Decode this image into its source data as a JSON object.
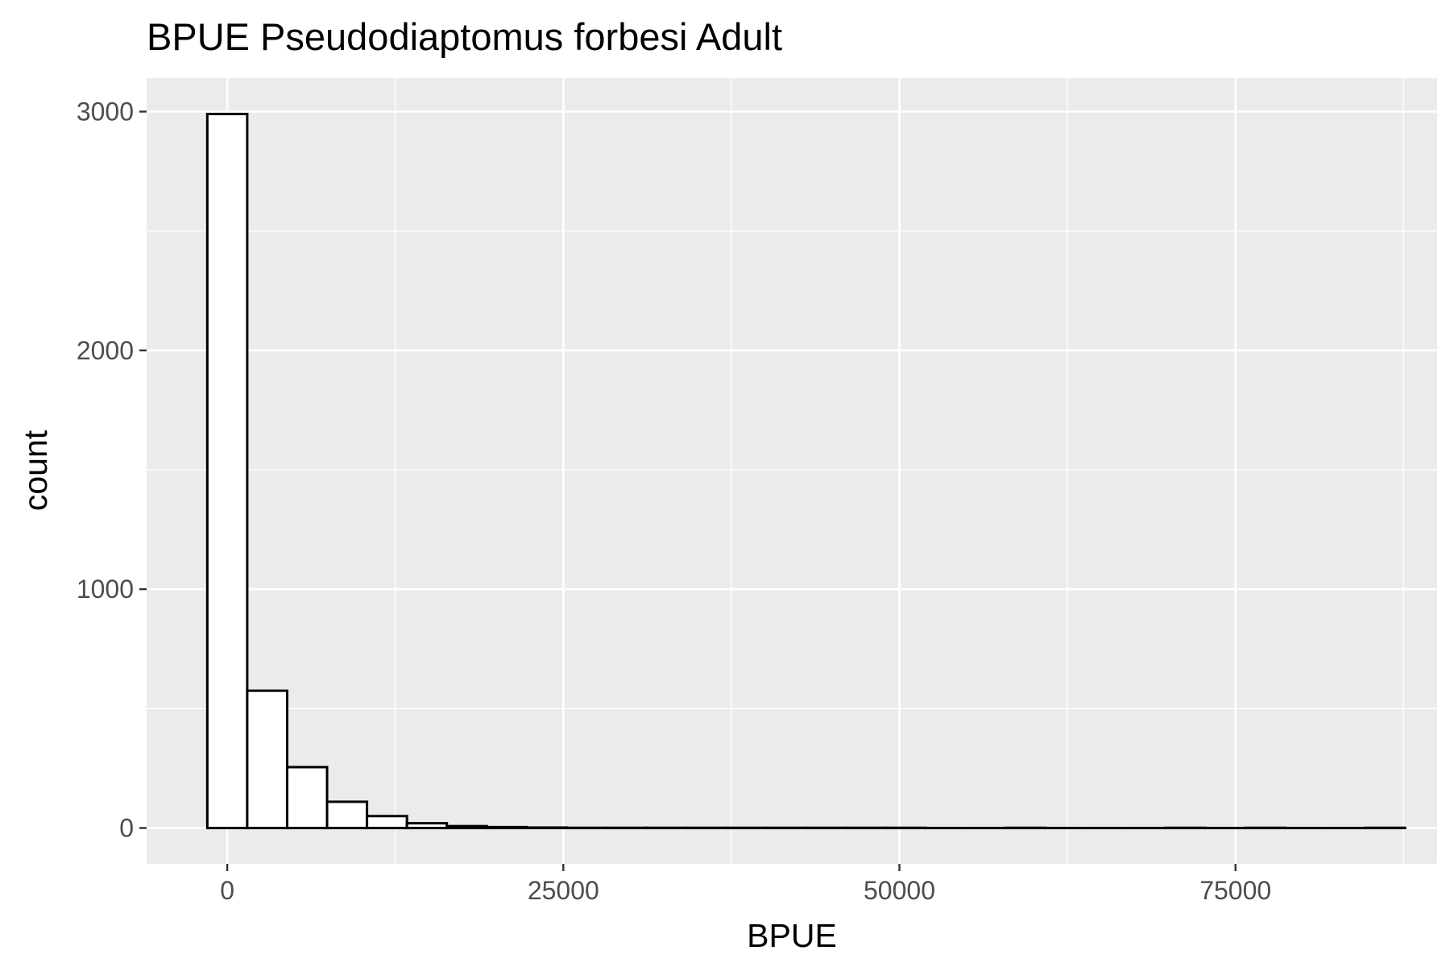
{
  "chart_data": {
    "type": "bar",
    "title": "BPUE Pseudodiaptomus forbesi Adult",
    "xlabel": "BPUE",
    "ylabel": "count",
    "bin_width": 2970,
    "bin_start": -1485,
    "counts": [
      2990,
      575,
      255,
      110,
      50,
      20,
      8,
      4,
      2,
      1,
      1,
      1,
      1,
      1,
      1,
      1,
      1,
      1,
      0,
      0,
      1,
      0,
      0,
      0,
      1,
      0,
      1,
      0,
      0,
      1
    ],
    "xlim": [
      -6000,
      90000
    ],
    "ylim": [
      -150,
      3140
    ],
    "x_ticks": [
      0,
      25000,
      50000,
      75000
    ],
    "x_tick_labels": [
      "0",
      "25000",
      "50000",
      "75000"
    ],
    "y_ticks": [
      0,
      1000,
      2000,
      3000
    ],
    "y_tick_labels": [
      "0",
      "1000",
      "2000",
      "3000"
    ],
    "grid": true,
    "colors": {
      "panel": "#ebebeb",
      "grid_major": "#ffffff",
      "bar_fill": "#ffffff",
      "bar_stroke": "#000000"
    }
  }
}
